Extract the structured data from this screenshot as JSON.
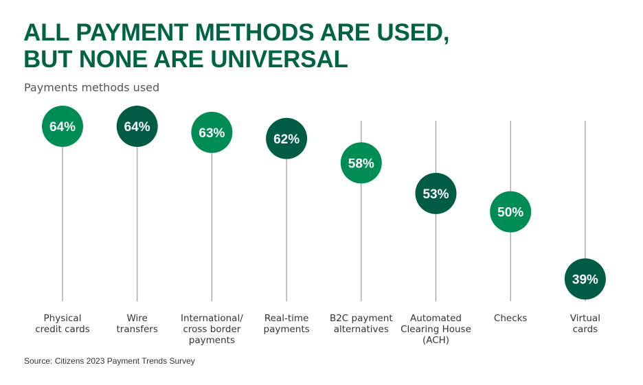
{
  "header": {
    "title_lines": [
      "ALL PAYMENT METHODS ARE USED,",
      "BUT NONE ARE UNIVERSAL"
    ],
    "subtitle": "Payments methods used"
  },
  "footer": {
    "source": "Source: Citizens 2023 Payment Trends Survey"
  },
  "colors": {
    "light_green": "#008c55",
    "dark_green": "#005c45",
    "stem": "#9a9a9a",
    "label": "#333333",
    "title": "#006341"
  },
  "chart_data": {
    "type": "lollipop",
    "title": "ALL PAYMENT METHODS ARE USED, BUT NONE ARE UNIVERSAL",
    "subtitle": "Payments methods used",
    "categories": [
      [
        "Physical",
        "credit cards"
      ],
      [
        "Wire",
        "transfers"
      ],
      [
        "International/",
        "cross border",
        "payments"
      ],
      [
        "Real-time",
        "payments"
      ],
      [
        "B2C payment",
        "alternatives"
      ],
      [
        "Automated",
        "Clearing House",
        "(ACH)"
      ],
      [
        "Checks"
      ],
      [
        "Virtual",
        "cards"
      ]
    ],
    "values": [
      64,
      64,
      63,
      62,
      58,
      53,
      50,
      39
    ],
    "value_labels": [
      "64%",
      "64%",
      "63%",
      "62%",
      "58%",
      "53%",
      "50%",
      "39%"
    ],
    "bubble_colors": [
      "light",
      "dark",
      "light",
      "dark",
      "light",
      "dark",
      "light",
      "dark"
    ],
    "unit": "%",
    "grid": false,
    "legend": "none"
  }
}
